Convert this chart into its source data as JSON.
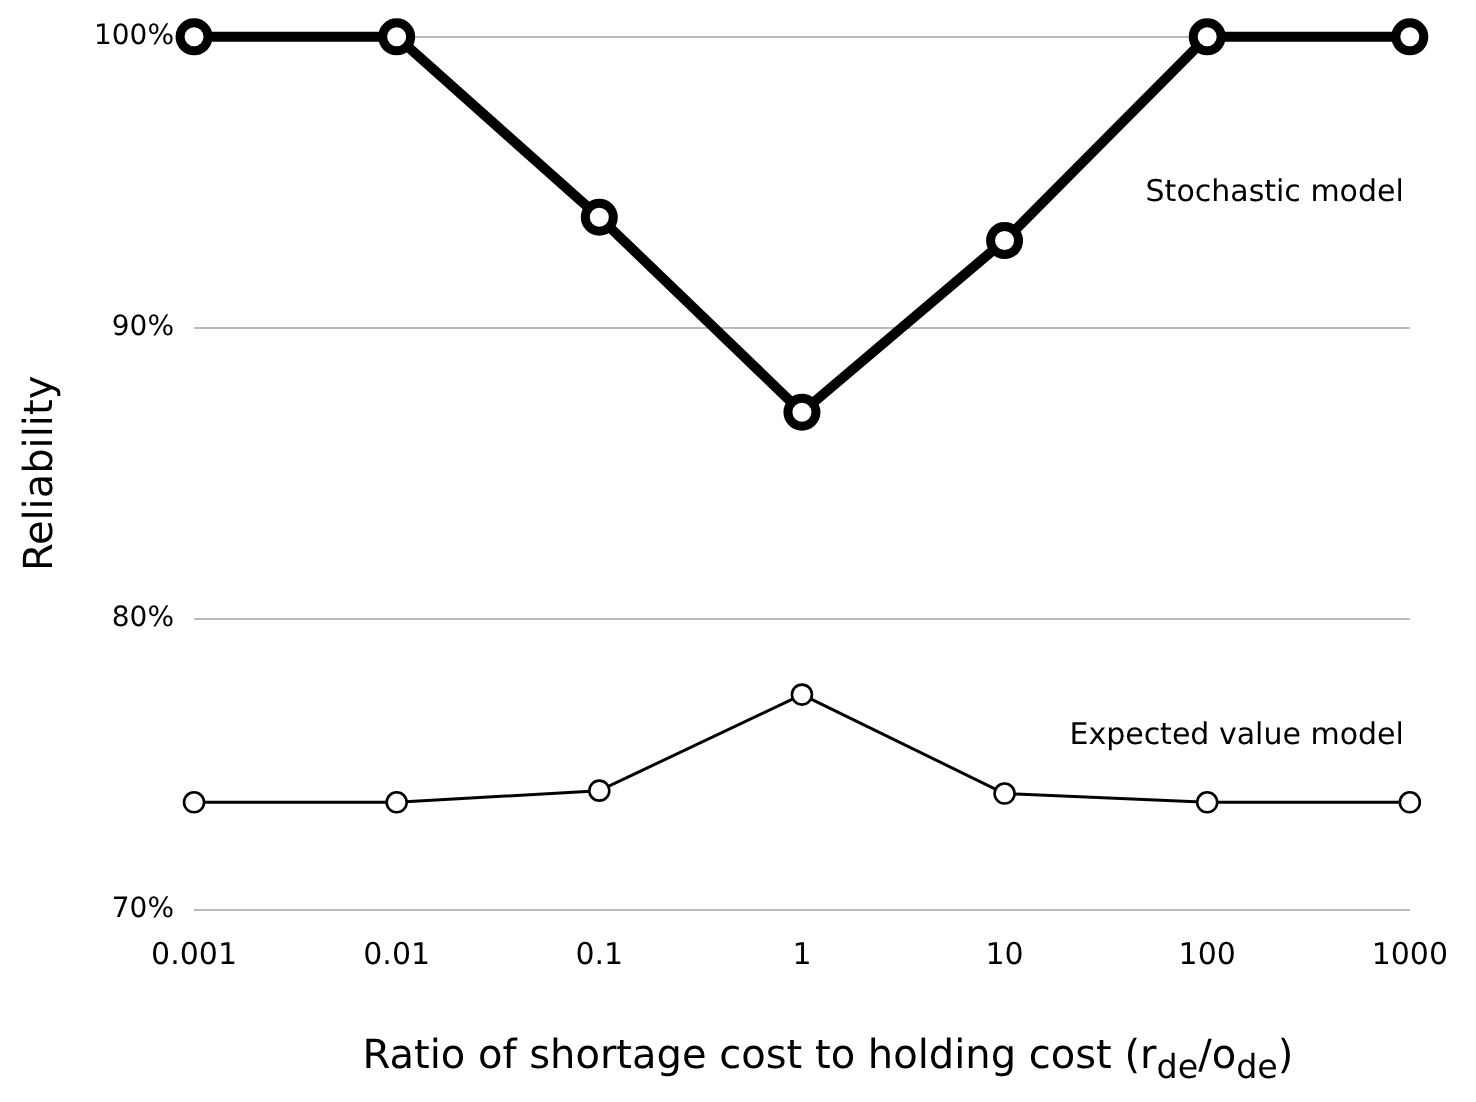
{
  "chart_data": {
    "type": "line",
    "xlabel": "Ratio of shortage cost to holding cost (r$_{de}$/o$_{de}$)",
    "ylabel": "Reliability",
    "categories": [
      "0.001",
      "0.01",
      "0.1",
      "1",
      "10",
      "100",
      "1000"
    ],
    "series": [
      {
        "name": "Stochastic model",
        "color": "#000000",
        "values": [
          100,
          100,
          93.8,
          87.1,
          93.0,
          100,
          100
        ]
      },
      {
        "name": "Expected value model",
        "color": "#000000",
        "values": [
          73.7,
          73.7,
          74.1,
          77.4,
          74.0,
          73.7,
          73.7
        ]
      }
    ],
    "ylim": [
      70,
      100
    ],
    "yticks": [
      {
        "value": 70,
        "label": "70%"
      },
      {
        "value": 80,
        "label": "80%"
      },
      {
        "value": 90,
        "label": "90%"
      },
      {
        "value": 100,
        "label": "100%"
      }
    ],
    "grid": "y",
    "legend": false,
    "marker": "circle",
    "line_style": "solid"
  }
}
